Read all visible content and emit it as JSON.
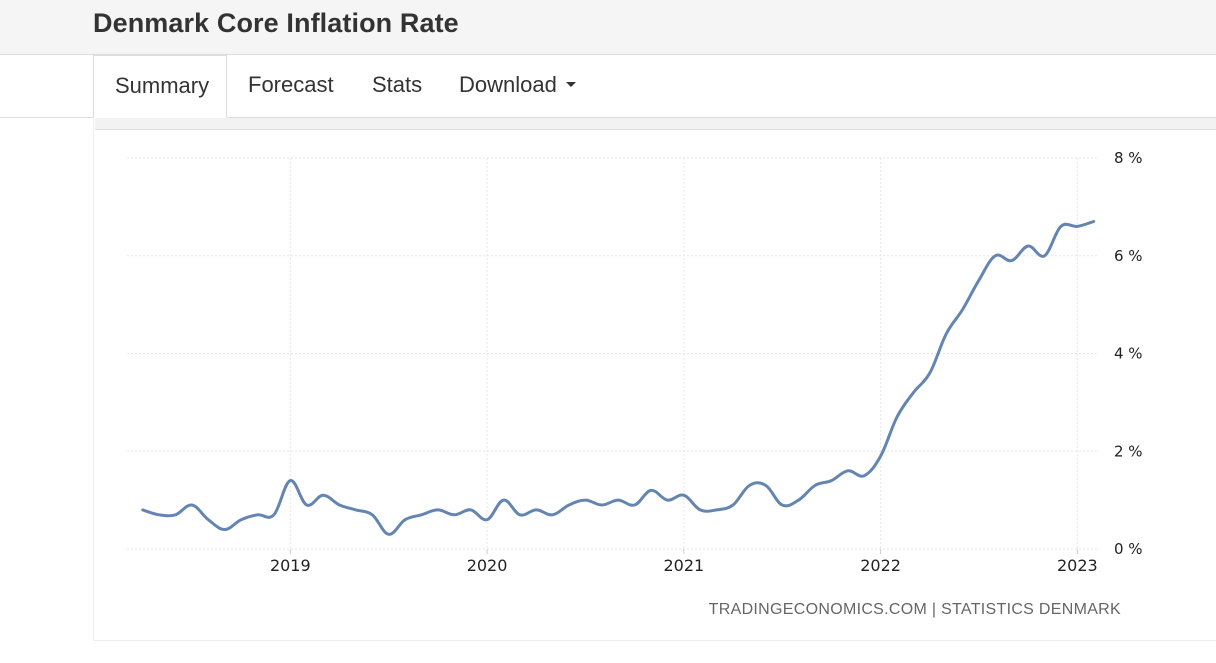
{
  "page": {
    "title": "Denmark Core Inflation Rate",
    "tabs": [
      {
        "label": "Summary",
        "active": true
      },
      {
        "label": "Forecast",
        "active": false
      },
      {
        "label": "Stats",
        "active": false
      },
      {
        "label": "Download",
        "active": false,
        "dropdown": true
      }
    ],
    "source": "TRADINGECONOMICS.COM | STATISTICS DENMARK"
  },
  "colors": {
    "line": "#6485b2",
    "grid": "#e6e6e6",
    "axis_text": "#222222"
  },
  "chart_data": {
    "type": "line",
    "title": "Denmark Core Inflation Rate",
    "xlabel": "",
    "ylabel": "",
    "x_start": 2018.25,
    "x_step_months": 1,
    "xlim": [
      2018.17,
      2023.1
    ],
    "ylim": [
      0,
      8
    ],
    "x_ticks": [
      2019,
      2020,
      2021,
      2022,
      2023
    ],
    "x_tick_labels": [
      "2019",
      "2020",
      "2021",
      "2022",
      "2023"
    ],
    "y_ticks": [
      0,
      2,
      4,
      6,
      8
    ],
    "y_tick_labels": [
      "0 %",
      "2 %",
      "4 %",
      "6 %",
      "8 %"
    ],
    "y_axis_side": "right",
    "grid": true,
    "series": [
      {
        "name": "Core Inflation Rate",
        "values": [
          0.8,
          0.7,
          0.7,
          0.9,
          0.6,
          0.4,
          0.6,
          0.7,
          0.7,
          1.4,
          0.9,
          1.1,
          0.9,
          0.8,
          0.7,
          0.3,
          0.6,
          0.7,
          0.8,
          0.7,
          0.8,
          0.6,
          1.0,
          0.7,
          0.8,
          0.7,
          0.9,
          1.0,
          0.9,
          1.0,
          0.9,
          1.2,
          1.0,
          1.1,
          0.8,
          0.8,
          0.9,
          1.3,
          1.3,
          0.9,
          1.0,
          1.3,
          1.4,
          1.6,
          1.5,
          1.9,
          2.7,
          3.2,
          3.6,
          4.4,
          4.9,
          5.5,
          6.0,
          5.9,
          6.2,
          6.0,
          6.6,
          6.6,
          6.7
        ]
      }
    ]
  }
}
